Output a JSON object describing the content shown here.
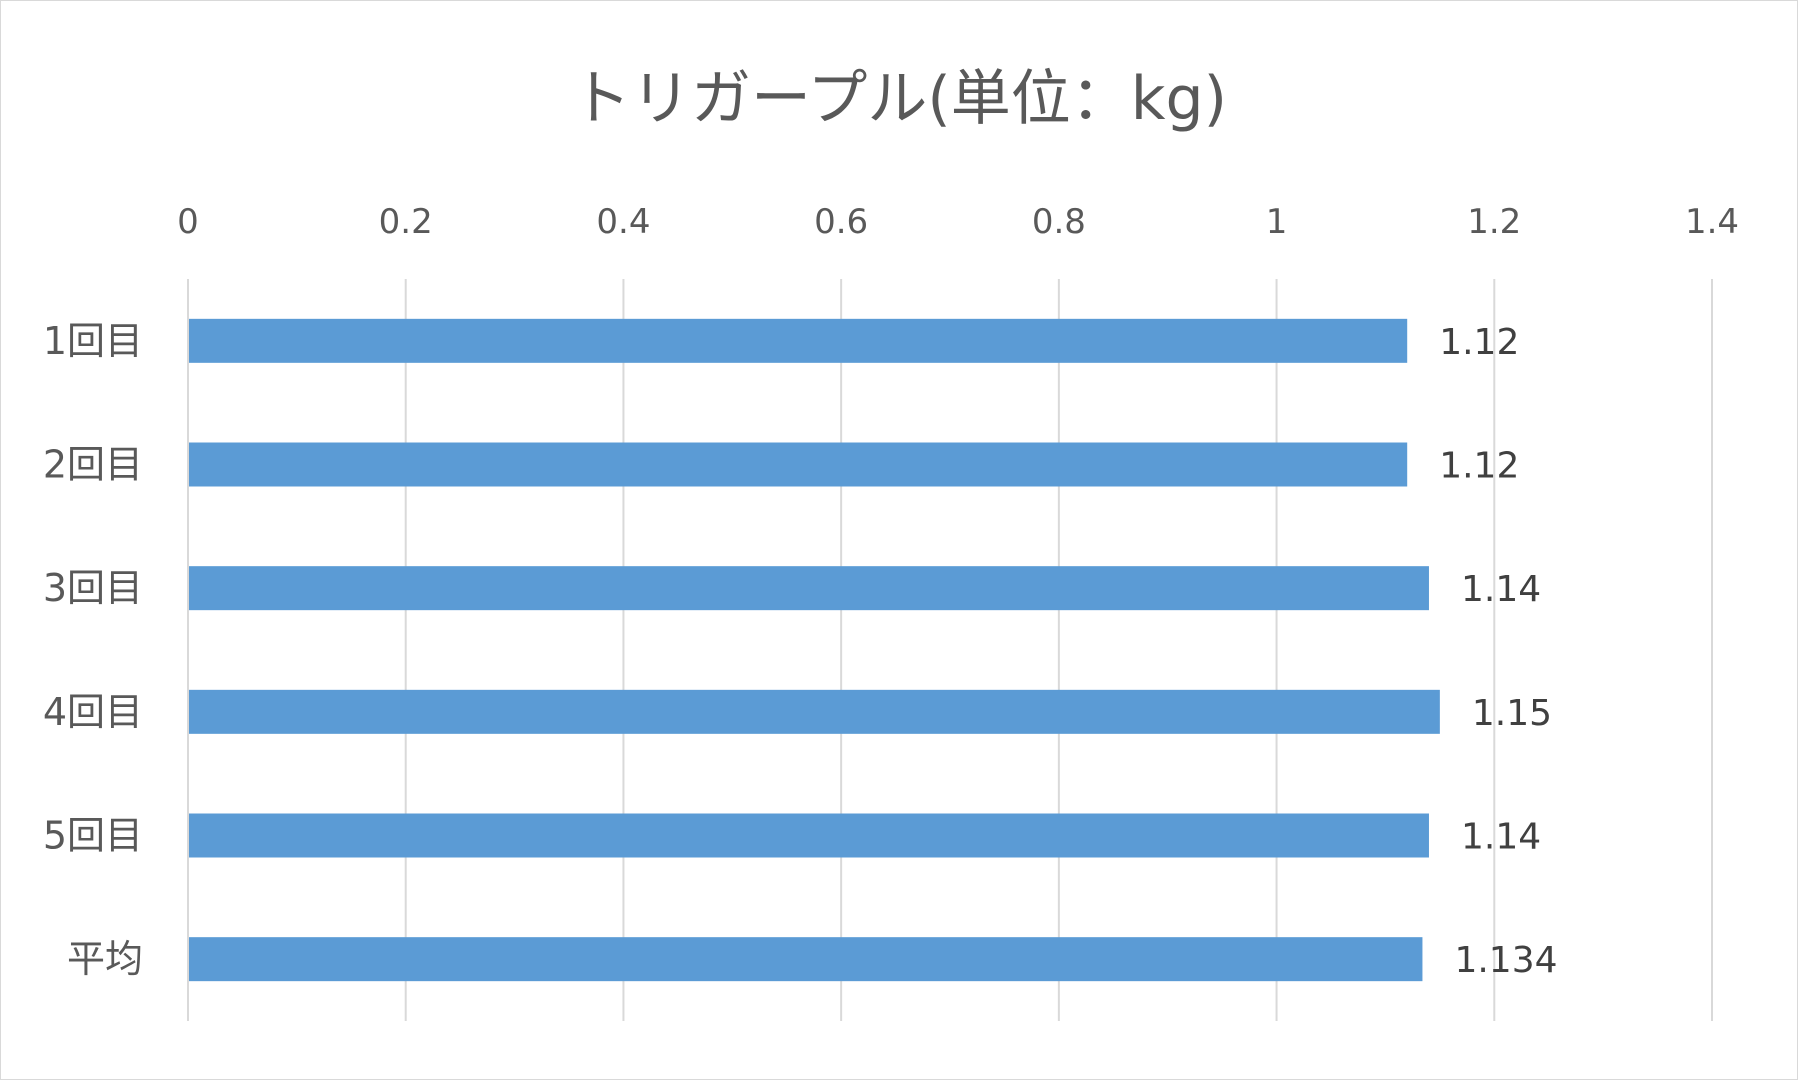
{
  "chart_data": {
    "type": "bar",
    "orientation": "horizontal",
    "title": "トリガープル(単位：kg)",
    "categories": [
      "1回目",
      "2回目",
      "3回目",
      "4回目",
      "5回目",
      "平均"
    ],
    "values": [
      1.12,
      1.12,
      1.14,
      1.15,
      1.14,
      1.134
    ],
    "data_labels": [
      "1.12",
      "1.12",
      "1.14",
      "1.15",
      "1.14",
      "1.134"
    ],
    "x_ticks": [
      "0",
      "0.2",
      "0.4",
      "0.6",
      "0.8",
      "1",
      "1.2",
      "1.4"
    ],
    "xlim": [
      0,
      1.4
    ],
    "xlabel": "",
    "ylabel": "",
    "x_axis_position": "top",
    "grid": true,
    "legend": "none",
    "bar_color": "#5b9bd5",
    "gridline_color": "#d9d9d9",
    "text_color": "#595959"
  }
}
